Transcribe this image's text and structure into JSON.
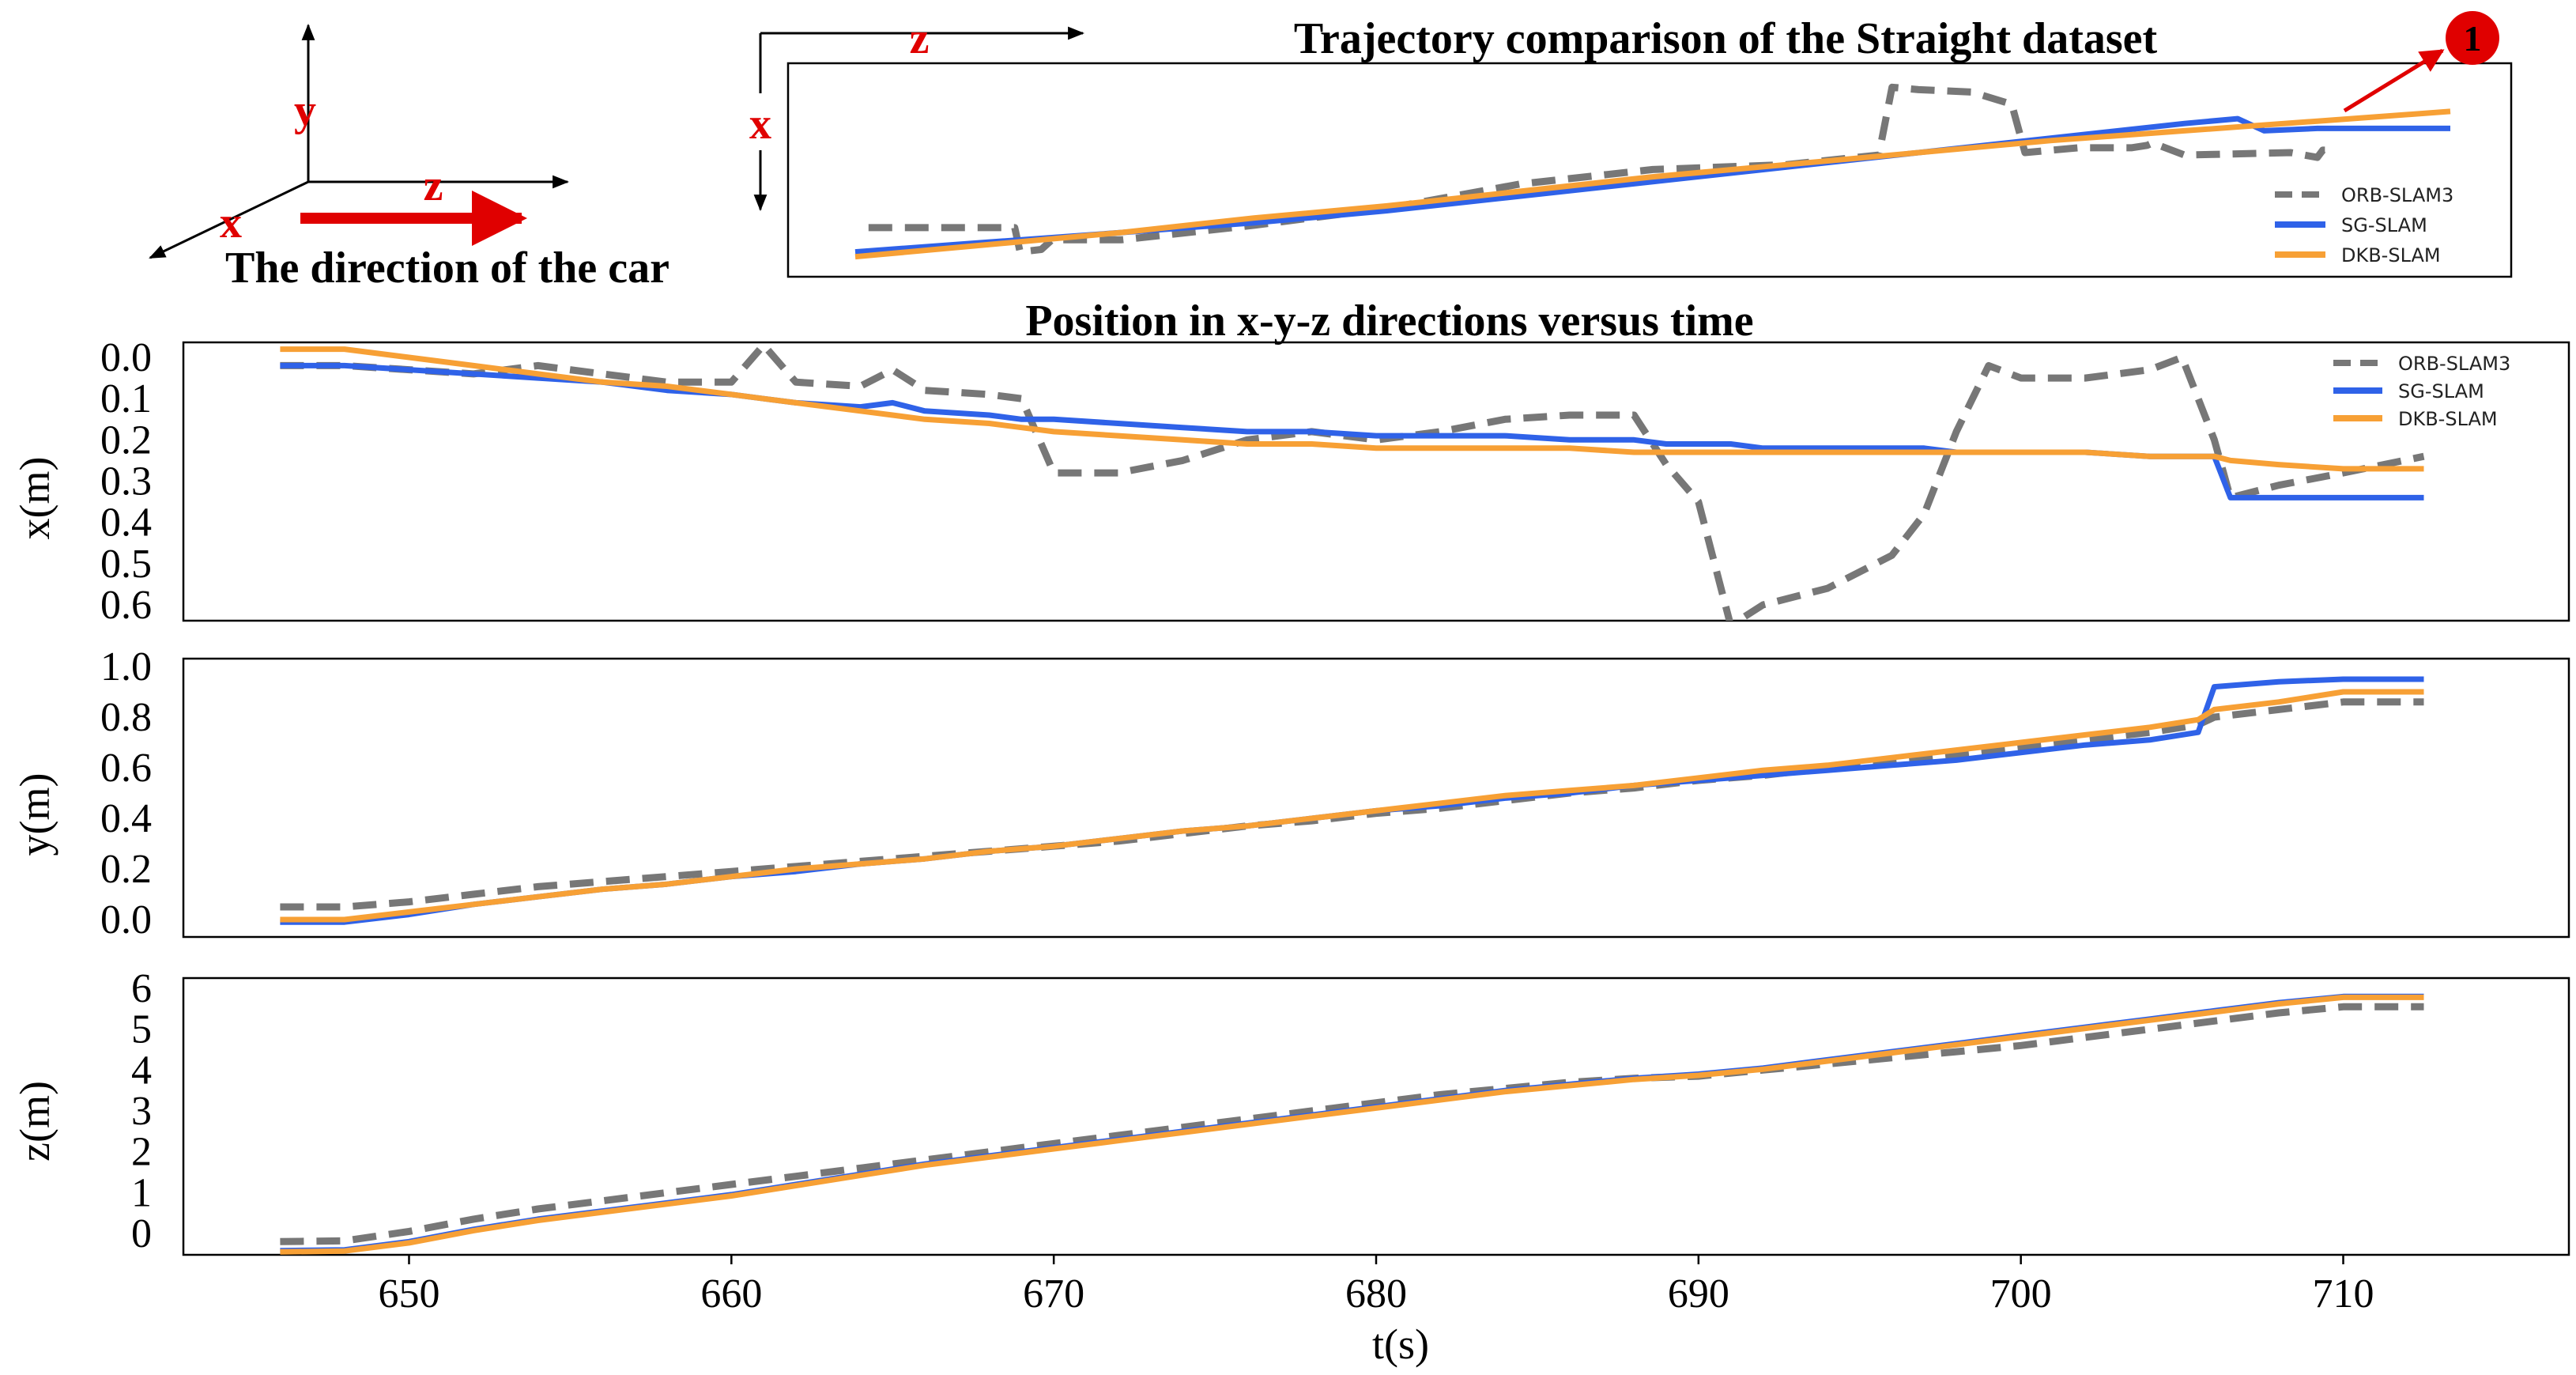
{
  "figure": {
    "top_title": "Trajectory comparison of the Straight dataset",
    "middle_title": "Position in x-y-z directions versus time",
    "car_direction_caption": "The direction of the car",
    "axis_glyph_labels": {
      "x": "x",
      "y": "y",
      "z": "z"
    },
    "marker_label": "1"
  },
  "colors": {
    "ORB-SLAM3": "#777777",
    "SG-SLAM": "#2f62e8",
    "DKB-SLAM": "#f7a035",
    "accent_red": "#e00000"
  },
  "chart_data": [
    {
      "type": "line",
      "title": "Trajectory comparison of the Straight dataset",
      "xlabel": "z",
      "ylabel": "x",
      "axes_ticks_visible": false,
      "legend": "bottom-right",
      "series": [
        {
          "name": "ORB-SLAM3",
          "style": "dashed",
          "z": [
            0.05,
            0.4,
            0.6,
            0.62,
            0.7,
            0.74,
            1.0,
            1.5,
            2.0,
            2.5,
            3.0,
            3.5,
            3.85,
            3.9,
            4.0,
            4.2,
            4.35,
            4.4,
            4.6,
            4.8,
            4.86,
            4.88,
            5.0,
            5.4,
            5.5,
            5.52,
            5.55
          ],
          "x": [
            0.12,
            0.12,
            0.12,
            0.02,
            0.03,
            0.07,
            0.07,
            0.13,
            0.2,
            0.3,
            0.36,
            0.38,
            0.42,
            0.7,
            0.69,
            0.68,
            0.63,
            0.43,
            0.45,
            0.45,
            0.46,
            0.47,
            0.42,
            0.43,
            0.41,
            0.44,
            0.44
          ]
        },
        {
          "name": "SG-SLAM",
          "style": "solid",
          "z": [
            0,
            0.5,
            1.0,
            1.5,
            2.0,
            2.5,
            3.0,
            3.5,
            4.0,
            4.5,
            5.0,
            5.2,
            5.3,
            5.5,
            5.8,
            6.0
          ],
          "x": [
            0.02,
            0.06,
            0.1,
            0.14,
            0.19,
            0.25,
            0.31,
            0.37,
            0.43,
            0.49,
            0.55,
            0.57,
            0.52,
            0.53,
            0.53,
            0.53
          ]
        },
        {
          "name": "DKB-SLAM",
          "style": "solid",
          "z": [
            0,
            0.5,
            1.0,
            1.5,
            2.0,
            2.5,
            3.0,
            3.5,
            4.0,
            4.5,
            5.0,
            5.5,
            6.0
          ],
          "x": [
            0.0,
            0.05,
            0.1,
            0.16,
            0.21,
            0.27,
            0.33,
            0.38,
            0.43,
            0.48,
            0.52,
            0.56,
            0.6
          ]
        }
      ]
    },
    {
      "type": "line",
      "title": "Position in x-y-z directions versus time",
      "xlabel": "",
      "ylabel": "x(m)",
      "yticks": [
        "0.0",
        "0.1",
        "0.2",
        "0.3",
        "0.4",
        "0.5",
        "0.6"
      ],
      "ylim": [
        0.0,
        0.6
      ],
      "y_inverted": true,
      "legend": "top-right",
      "x": [
        646,
        648,
        650,
        652,
        654,
        656,
        658,
        660,
        661,
        662,
        664,
        665,
        666,
        668,
        669,
        670,
        672,
        674,
        676,
        678,
        680,
        682,
        684,
        686,
        688,
        689,
        690,
        691,
        692,
        694,
        696,
        697,
        698,
        699,
        700,
        702,
        704,
        705,
        706,
        706.5,
        708,
        710,
        712.5
      ],
      "series": [
        {
          "name": "ORB-SLAM3",
          "style": "dashed",
          "values": [
            0.02,
            0.02,
            0.03,
            0.04,
            0.02,
            0.04,
            0.06,
            0.06,
            -0.03,
            0.06,
            0.07,
            0.03,
            0.08,
            0.09,
            0.1,
            0.28,
            0.28,
            0.25,
            0.2,
            0.18,
            0.2,
            0.18,
            0.15,
            0.14,
            0.14,
            0.26,
            0.35,
            0.65,
            0.6,
            0.56,
            0.48,
            0.38,
            0.18,
            0.02,
            0.05,
            0.05,
            0.03,
            0.0,
            0.2,
            0.34,
            0.31,
            0.28,
            0.24
          ]
        },
        {
          "name": "SG-SLAM",
          "style": "solid",
          "values": [
            0.02,
            0.02,
            0.03,
            0.04,
            0.05,
            0.06,
            0.08,
            0.09,
            0.1,
            0.11,
            0.12,
            0.11,
            0.13,
            0.14,
            0.15,
            0.15,
            0.16,
            0.17,
            0.18,
            0.18,
            0.19,
            0.19,
            0.19,
            0.2,
            0.2,
            0.21,
            0.21,
            0.21,
            0.22,
            0.22,
            0.22,
            0.22,
            0.23,
            0.23,
            0.23,
            0.23,
            0.24,
            0.24,
            0.24,
            0.34,
            0.34,
            0.34,
            0.34
          ]
        },
        {
          "name": "DKB-SLAM",
          "style": "solid",
          "values": [
            -0.02,
            -0.02,
            0.0,
            0.02,
            0.04,
            0.06,
            0.07,
            0.09,
            0.1,
            0.11,
            0.13,
            0.14,
            0.15,
            0.16,
            0.17,
            0.18,
            0.19,
            0.2,
            0.21,
            0.21,
            0.22,
            0.22,
            0.22,
            0.22,
            0.23,
            0.23,
            0.23,
            0.23,
            0.23,
            0.23,
            0.23,
            0.23,
            0.23,
            0.23,
            0.23,
            0.23,
            0.24,
            0.24,
            0.24,
            0.25,
            0.26,
            0.27,
            0.27
          ]
        }
      ]
    },
    {
      "type": "line",
      "xlabel": "",
      "ylabel": "y(m)",
      "yticks": [
        "0.0",
        "0.2",
        "0.4",
        "0.6",
        "0.8",
        "1.0"
      ],
      "ylim": [
        0.0,
        1.0
      ],
      "x": [
        646,
        648,
        650,
        652,
        654,
        656,
        658,
        660,
        662,
        664,
        666,
        668,
        670,
        672,
        674,
        676,
        678,
        680,
        682,
        684,
        686,
        688,
        690,
        692,
        694,
        696,
        698,
        700,
        702,
        704,
        705.5,
        706,
        708,
        710,
        712.5
      ],
      "series": [
        {
          "name": "ORB-SLAM3",
          "style": "dashed",
          "values": [
            0.05,
            0.05,
            0.07,
            0.1,
            0.13,
            0.15,
            0.17,
            0.19,
            0.21,
            0.23,
            0.25,
            0.27,
            0.29,
            0.31,
            0.34,
            0.37,
            0.39,
            0.42,
            0.44,
            0.47,
            0.5,
            0.52,
            0.55,
            0.57,
            0.6,
            0.62,
            0.65,
            0.68,
            0.71,
            0.74,
            0.77,
            0.8,
            0.83,
            0.86,
            0.86
          ]
        },
        {
          "name": "SG-SLAM",
          "style": "solid",
          "values": [
            -0.01,
            -0.01,
            0.02,
            0.06,
            0.09,
            0.12,
            0.14,
            0.17,
            0.19,
            0.22,
            0.24,
            0.27,
            0.29,
            0.32,
            0.35,
            0.37,
            0.4,
            0.43,
            0.45,
            0.48,
            0.5,
            0.53,
            0.55,
            0.57,
            0.59,
            0.61,
            0.63,
            0.66,
            0.69,
            0.71,
            0.74,
            0.92,
            0.94,
            0.95,
            0.95
          ]
        },
        {
          "name": "DKB-SLAM",
          "style": "solid",
          "values": [
            0.0,
            0.0,
            0.03,
            0.06,
            0.09,
            0.12,
            0.14,
            0.17,
            0.2,
            0.22,
            0.24,
            0.27,
            0.29,
            0.32,
            0.35,
            0.37,
            0.4,
            0.43,
            0.46,
            0.49,
            0.51,
            0.53,
            0.56,
            0.59,
            0.61,
            0.64,
            0.67,
            0.7,
            0.73,
            0.76,
            0.79,
            0.83,
            0.86,
            0.9,
            0.9
          ]
        }
      ]
    },
    {
      "type": "line",
      "xlabel": "t(s)",
      "ylabel": "z(m)",
      "xticks": [
        "650",
        "660",
        "670",
        "680",
        "690",
        "700",
        "710"
      ],
      "xlim": [
        643,
        717
      ],
      "yticks": [
        "0",
        "1",
        "2",
        "3",
        "4",
        "5",
        "6"
      ],
      "ylim": [
        0,
        6
      ],
      "x": [
        646,
        648,
        650,
        652,
        654,
        656,
        658,
        660,
        662,
        664,
        666,
        668,
        670,
        672,
        674,
        676,
        678,
        680,
        682,
        684,
        686,
        688,
        690,
        692,
        694,
        696,
        698,
        700,
        702,
        704,
        706,
        708,
        710,
        712.5
      ],
      "series": [
        {
          "name": "ORB-SLAM3",
          "style": "dashed",
          "values": [
            -0.2,
            -0.18,
            0.05,
            0.35,
            0.6,
            0.8,
            1.0,
            1.2,
            1.4,
            1.6,
            1.8,
            2.0,
            2.2,
            2.4,
            2.6,
            2.8,
            3.0,
            3.2,
            3.4,
            3.55,
            3.7,
            3.8,
            3.85,
            4.0,
            4.15,
            4.3,
            4.45,
            4.6,
            4.8,
            5.0,
            5.2,
            5.4,
            5.55,
            5.55
          ]
        },
        {
          "name": "SG-SLAM",
          "style": "solid",
          "values": [
            -0.42,
            -0.4,
            -0.2,
            0.1,
            0.35,
            0.55,
            0.75,
            0.95,
            1.2,
            1.45,
            1.7,
            1.9,
            2.1,
            2.3,
            2.5,
            2.7,
            2.9,
            3.1,
            3.3,
            3.5,
            3.65,
            3.8,
            3.9,
            4.05,
            4.25,
            4.45,
            4.65,
            4.85,
            5.05,
            5.25,
            5.45,
            5.65,
            5.8,
            5.8
          ]
        },
        {
          "name": "DKB-SLAM",
          "style": "solid",
          "values": [
            -0.45,
            -0.43,
            -0.23,
            0.07,
            0.32,
            0.52,
            0.72,
            0.92,
            1.17,
            1.42,
            1.67,
            1.87,
            2.07,
            2.27,
            2.47,
            2.67,
            2.87,
            3.07,
            3.27,
            3.47,
            3.62,
            3.77,
            3.87,
            4.02,
            4.22,
            4.42,
            4.62,
            4.82,
            5.02,
            5.22,
            5.42,
            5.62,
            5.78,
            5.78
          ]
        }
      ]
    }
  ]
}
